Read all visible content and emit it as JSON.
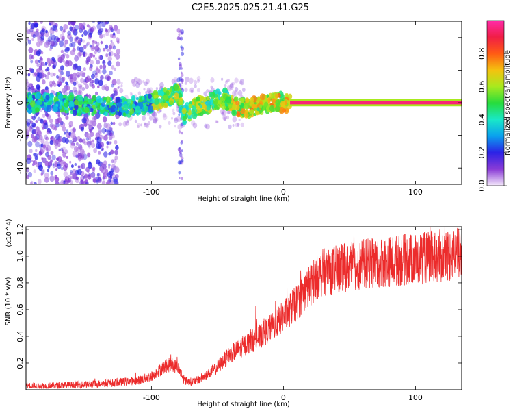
{
  "title": "C2E5.2025.025.21.41.G25",
  "chart_data": [
    {
      "type": "heatmap",
      "xlabel": "Height of straight line (km)",
      "ylabel": "Frequency (Hz)",
      "xlim": [
        -195,
        135
      ],
      "ylim": [
        -50,
        50
      ],
      "x_ticks": [
        -100,
        0,
        100
      ],
      "y_ticks": [
        -40,
        -20,
        0,
        20,
        40
      ],
      "colorbar": {
        "label": "Normalized spectral amplitude",
        "range": [
          0,
          1
        ],
        "ticks": [
          "0.0",
          "0.2",
          "0.4",
          "0.6",
          "0.8"
        ],
        "stops": [
          "#f4e9fb",
          "#8a3bd6",
          "#2b22e6",
          "#0aa0ee",
          "#19e8c8",
          "#27dc3c",
          "#a8ea1e",
          "#f4c20f",
          "#ff5a14",
          "#f01e46",
          "#ff2aa8"
        ]
      },
      "features": {
        "carrier_line": {
          "x_start": 5,
          "x_end": 135,
          "frequency": 0,
          "amplitude": 0.95
        },
        "scatter_region": {
          "x_start": -195,
          "x_end": -125,
          "frequency_range": [
            -50,
            50
          ],
          "amplitude": 0.2
        },
        "ridge_points": [
          [
            -180,
            1
          ],
          [
            -150,
            -2
          ],
          [
            -120,
            -3
          ],
          [
            -100,
            0
          ],
          [
            -90,
            3
          ],
          [
            -80,
            6
          ],
          [
            -75,
            -8
          ],
          [
            -65,
            -2
          ],
          [
            -55,
            0
          ],
          [
            -45,
            3
          ],
          [
            -35,
            -3
          ],
          [
            -25,
            -3
          ],
          [
            -15,
            -1
          ],
          [
            -5,
            1
          ],
          [
            0,
            0
          ]
        ]
      },
      "grid": false
    },
    {
      "type": "line",
      "xlabel": "Height of straight line (km)",
      "ylabel": "SNR (10 * v/v)",
      "y_exponent": "(x10^4)",
      "xlim": [
        -195,
        135
      ],
      "ylim": [
        0.0,
        1.22
      ],
      "x_ticks": [
        -100,
        0,
        100
      ],
      "y_ticks": [
        0.2,
        0.4,
        0.6,
        0.8,
        1.0,
        1.2
      ],
      "color": "#ec2b2b",
      "trend": {
        "x": [
          -195,
          -170,
          -150,
          -130,
          -110,
          -100,
          -95,
          -90,
          -85,
          -80,
          -75,
          -70,
          -65,
          -60,
          -55,
          -50,
          -45,
          -40,
          -35,
          -30,
          -25,
          -20,
          -15,
          -10,
          -5,
          0,
          5,
          10,
          15,
          20,
          25,
          30,
          40,
          50,
          60,
          70,
          80,
          90,
          100,
          110,
          120,
          135
        ],
        "y": [
          0.03,
          0.03,
          0.04,
          0.05,
          0.07,
          0.1,
          0.14,
          0.17,
          0.19,
          0.17,
          0.07,
          0.06,
          0.07,
          0.1,
          0.13,
          0.17,
          0.22,
          0.27,
          0.3,
          0.33,
          0.36,
          0.38,
          0.42,
          0.46,
          0.5,
          0.55,
          0.6,
          0.65,
          0.72,
          0.78,
          0.84,
          0.88,
          0.9,
          0.92,
          0.94,
          0.95,
          0.96,
          0.97,
          0.98,
          0.99,
          1.0,
          1.02
        ]
      },
      "grid": false
    }
  ]
}
